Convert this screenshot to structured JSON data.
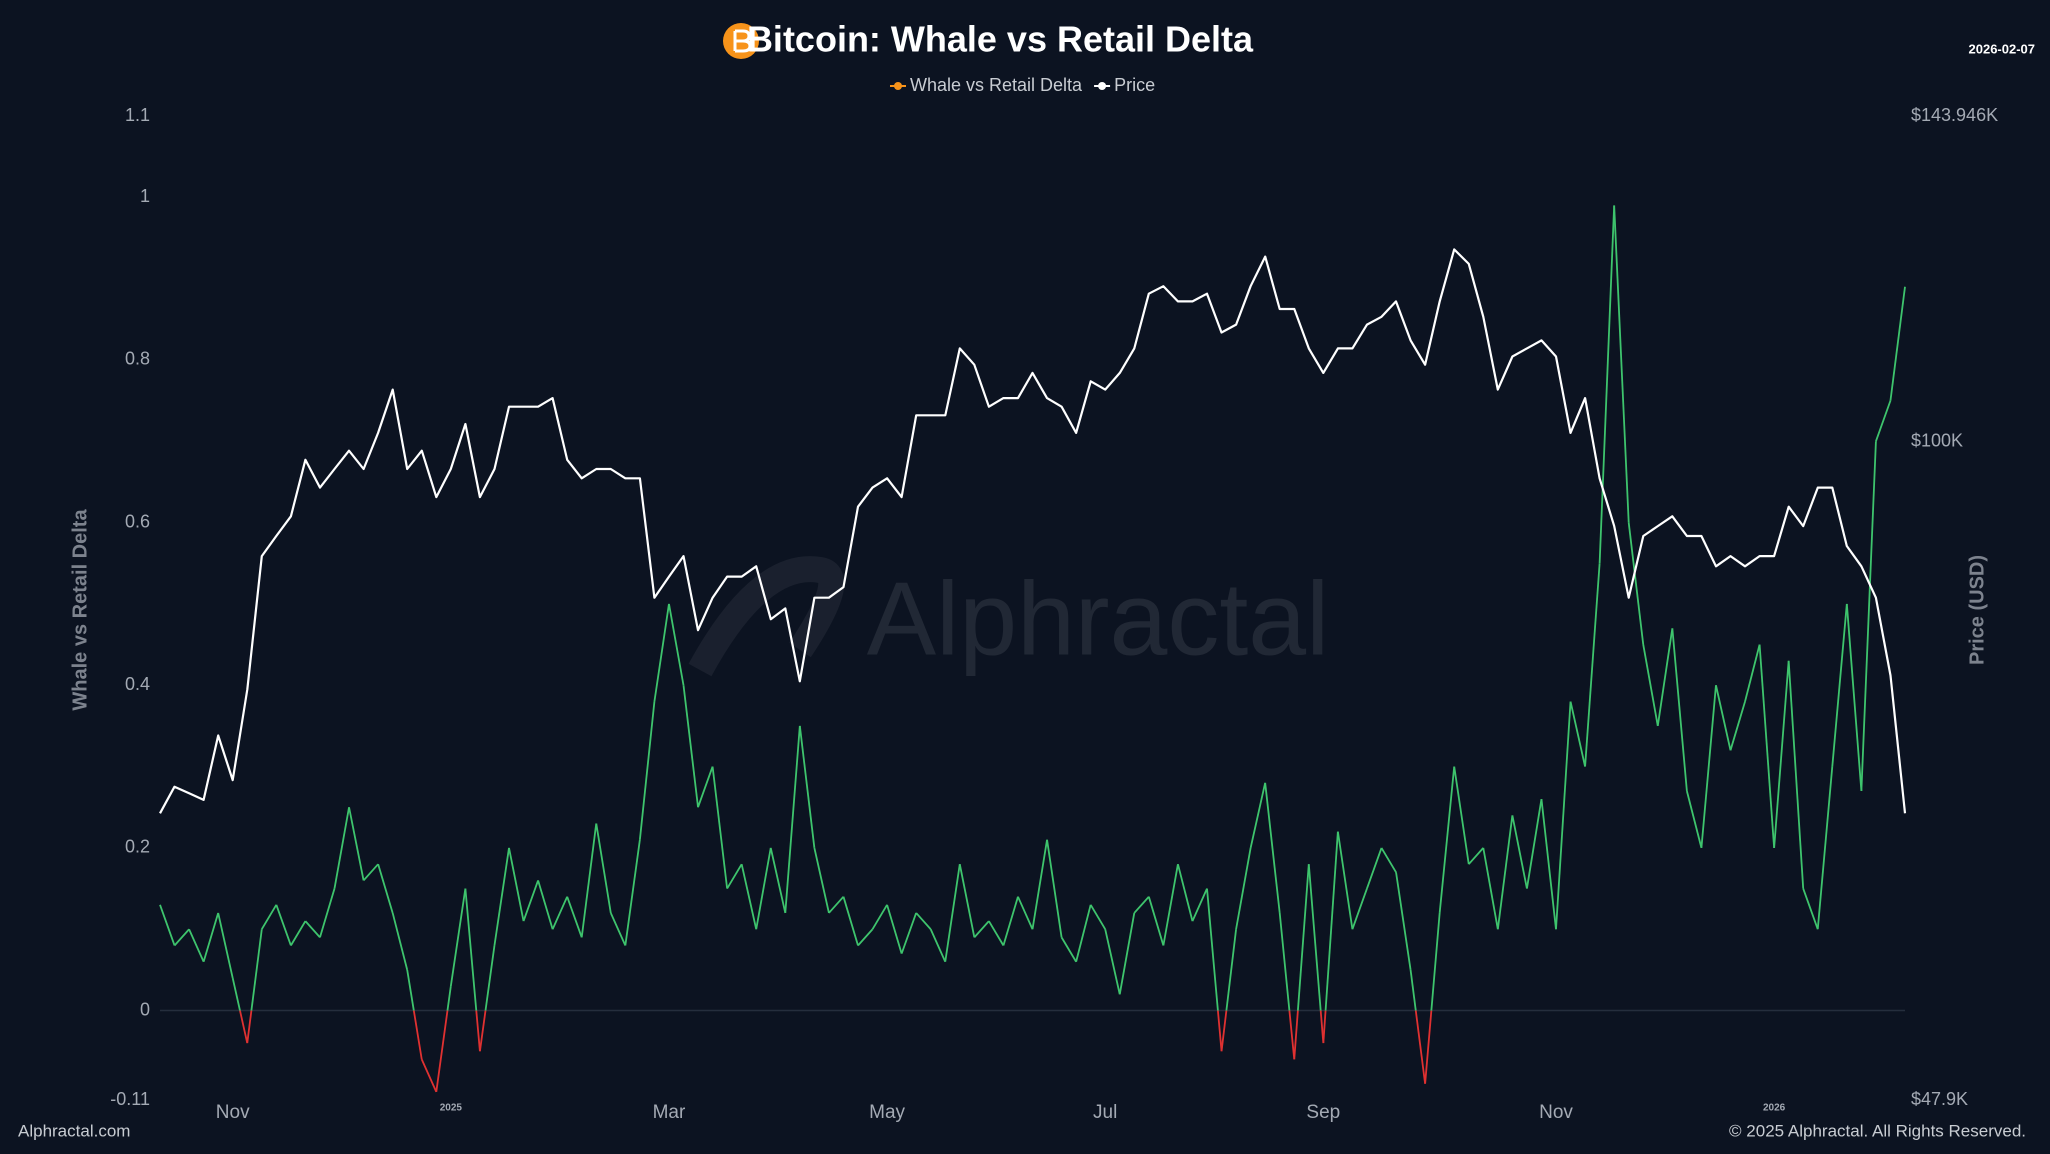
{
  "chart_data": {
    "type": "line",
    "title": "Bitcoin: Whale vs Retail Delta",
    "date": "2026-02-07",
    "ylabel": "Whale vs Retail Delta",
    "y2label": "Price (USD)",
    "watermark": "Alphractal",
    "footer_left": "Alphractal.com",
    "footer_right": "© 2025 Alphractal. All Rights Reserved.",
    "categories": [
      null,
      null,
      null,
      null,
      null,
      "Nov",
      null,
      null,
      null,
      null,
      null,
      null,
      null,
      null,
      null,
      null,
      null,
      null,
      null,
      null,
      "2025",
      null,
      null,
      null,
      null,
      null,
      null,
      null,
      null,
      null,
      null,
      null,
      null,
      null,
      null,
      "Mar",
      null,
      null,
      null,
      null,
      null,
      null,
      null,
      null,
      null,
      null,
      null,
      null,
      null,
      null,
      "May",
      null,
      null,
      null,
      null,
      null,
      null,
      null,
      null,
      null,
      null,
      null,
      null,
      null,
      null,
      "Jul",
      null,
      null,
      null,
      null,
      null,
      null,
      null,
      null,
      null,
      null,
      null,
      null,
      null,
      null,
      "Sep",
      null,
      null,
      null,
      null,
      null,
      null,
      null,
      null,
      null,
      null,
      null,
      null,
      null,
      null,
      null,
      "Nov",
      null,
      null,
      null,
      null,
      null,
      null,
      null,
      null,
      null,
      null,
      null,
      null,
      null,
      null,
      "2026",
      null,
      null,
      null,
      null,
      null,
      null,
      null,
      null,
      null
    ],
    "series": [
      {
        "name": "Whale vs Retail Delta",
        "color": "#f7931a",
        "positive_color": "#3ec46d",
        "negative_color": "#e03131",
        "values": [
          0.13,
          0.08,
          0.1,
          0.06,
          0.12,
          0.04,
          -0.04,
          0.1,
          0.13,
          0.08,
          0.11,
          0.09,
          0.15,
          0.25,
          0.16,
          0.18,
          0.12,
          0.05,
          -0.06,
          -0.1,
          0.03,
          0.15,
          -0.05,
          0.08,
          0.2,
          0.11,
          0.16,
          0.1,
          0.14,
          0.09,
          0.23,
          0.12,
          0.08,
          0.21,
          0.38,
          0.5,
          0.4,
          0.25,
          0.3,
          0.15,
          0.18,
          0.1,
          0.2,
          0.12,
          0.35,
          0.2,
          0.12,
          0.14,
          0.08,
          0.1,
          0.13,
          0.07,
          0.12,
          0.1,
          0.06,
          0.18,
          0.09,
          0.11,
          0.08,
          0.14,
          0.1,
          0.21,
          0.09,
          0.06,
          0.13,
          0.1,
          0.02,
          0.12,
          0.14,
          0.08,
          0.18,
          0.11,
          0.15,
          -0.05,
          0.1,
          0.2,
          0.28,
          0.12,
          -0.06,
          0.18,
          -0.04,
          0.22,
          0.1,
          0.15,
          0.2,
          0.17,
          0.05,
          -0.09,
          0.12,
          0.3,
          0.18,
          0.2,
          0.1,
          0.24,
          0.15,
          0.26,
          0.1,
          0.38,
          0.3,
          0.55,
          0.99,
          0.6,
          0.45,
          0.35,
          0.47,
          0.27,
          0.2,
          0.4,
          0.32,
          0.38,
          0.45,
          0.2,
          0.43,
          0.15,
          0.1,
          0.3,
          0.5,
          0.27,
          0.7,
          0.75,
          0.89
        ]
      },
      {
        "name": "Price",
        "color": "#ffffff",
        "axis": "y2",
        "values": [
          66000,
          68000,
          67500,
          67000,
          72000,
          68500,
          75800,
          88000,
          90000,
          92000,
          98000,
          95000,
          97000,
          99000,
          97000,
          101000,
          106000,
          97000,
          99000,
          94000,
          97000,
          102000,
          94000,
          97000,
          104000,
          104000,
          104000,
          105000,
          98000,
          96000,
          97000,
          97000,
          96000,
          96000,
          84000,
          86000,
          88000,
          81000,
          84000,
          86000,
          86000,
          87000,
          82000,
          83000,
          76500,
          84000,
          84000,
          85000,
          93000,
          95000,
          96000,
          94000,
          103000,
          103000,
          103000,
          111000,
          109000,
          104000,
          105000,
          105000,
          108000,
          105000,
          104000,
          101000,
          107000,
          106000,
          108000,
          111000,
          118000,
          119000,
          117000,
          117000,
          118000,
          113000,
          114000,
          119000,
          123000,
          116000,
          116000,
          111000,
          108000,
          111000,
          111000,
          114000,
          115000,
          117000,
          112000,
          109000,
          117000,
          124000,
          122000,
          115000,
          106000,
          110000,
          111000,
          112000,
          110000,
          101000,
          105000,
          96000,
          91000,
          84000,
          90000,
          91000,
          92000,
          90000,
          90000,
          87000,
          88000,
          87000,
          88000,
          88000,
          93000,
          91000,
          95000,
          95000,
          89000,
          87000,
          84000,
          77000,
          66000
        ]
      }
    ],
    "ylim": [
      -0.11,
      1.1
    ],
    "yticks": [
      -0.11,
      0,
      0.2,
      0.4,
      0.6,
      0.8,
      1,
      1.1
    ],
    "y2lim": [
      47900,
      143946
    ],
    "y2ticks": [
      {
        "value": 47900,
        "label": "$47.9K"
      },
      {
        "value": 100000,
        "label": "$100K"
      },
      {
        "value": 143946,
        "label": "$143.946K"
      }
    ],
    "y2log": true,
    "grid": false,
    "zero_line": true,
    "legend": "top"
  }
}
